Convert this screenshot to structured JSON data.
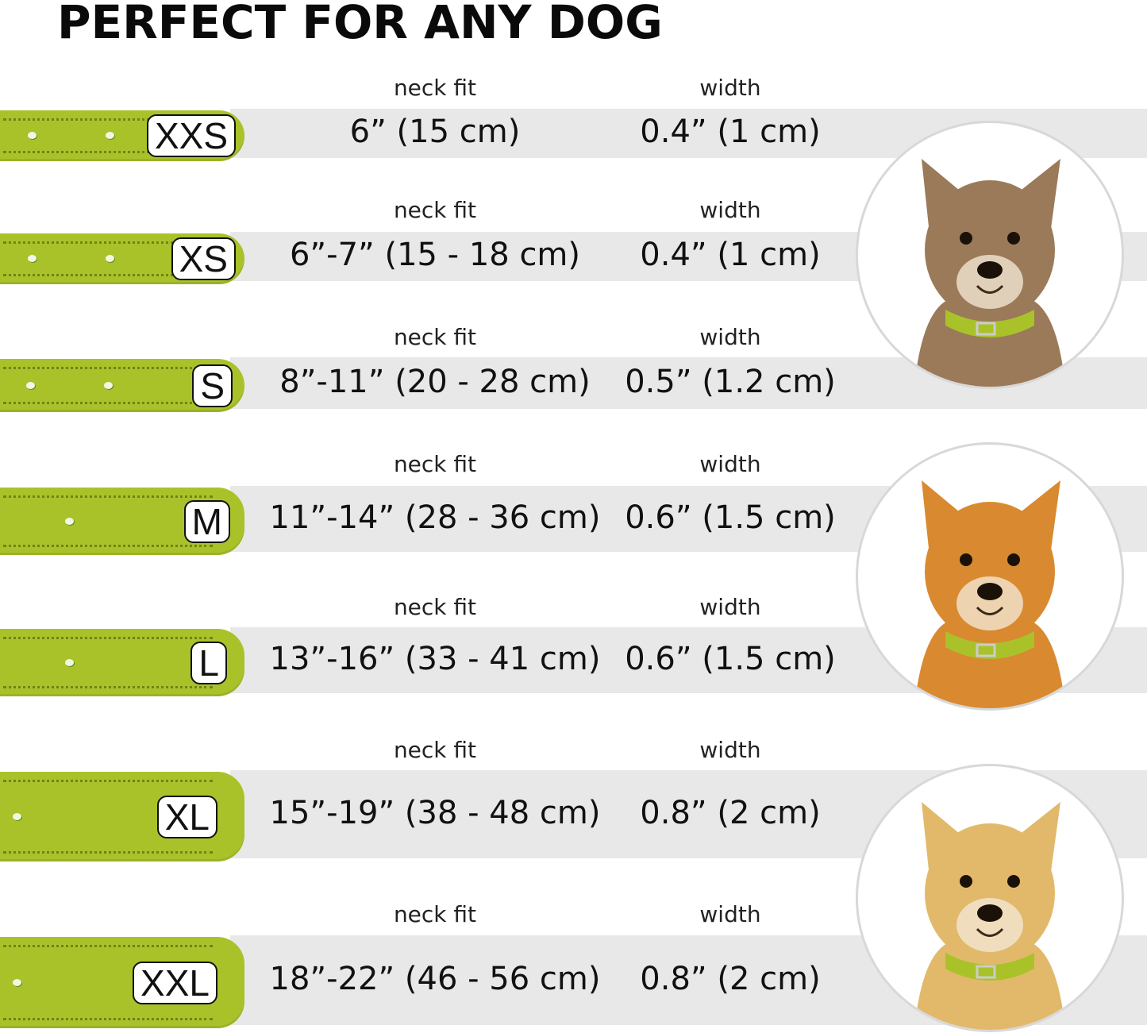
{
  "title": "PERFECT FOR ANY DOG",
  "colors": {
    "collar": "#a9c22a",
    "band": "#e8e8e8"
  },
  "sizes": [
    {
      "size": "XXS",
      "neck_label": "neck fit",
      "width_label": "width",
      "neck_fit": "6” (15 cm)",
      "width": "0.4” (1 cm)"
    },
    {
      "size": "XS",
      "neck_label": "neck fit",
      "width_label": "width",
      "neck_fit": "6”-7” (15 - 18 cm)",
      "width": "0.4” (1 cm)"
    },
    {
      "size": "S",
      "neck_label": "neck fit",
      "width_label": "width",
      "neck_fit": "8”-11” (20 - 28 cm)",
      "width": "0.5” (1.2 cm)"
    },
    {
      "size": "M",
      "neck_label": "neck fit",
      "width_label": "width",
      "neck_fit": "11”-14” (28 - 36 cm)",
      "width": "0.6” (1.5 cm)"
    },
    {
      "size": "L",
      "neck_label": "neck fit",
      "width_label": "width",
      "neck_fit": "13”-16” (33 - 41 cm)",
      "width": "0.6” (1.5 cm)"
    },
    {
      "size": "XL",
      "neck_label": "neck fit",
      "width_label": "width",
      "neck_fit": "15”-19” (38 - 48 cm)",
      "width": "0.8” (2 cm)"
    },
    {
      "size": "XXL",
      "neck_label": "neck fit",
      "width_label": "width",
      "neck_fit": "18”-22” (46 - 56 cm)",
      "width": "0.8” (2 cm)"
    }
  ],
  "dog_images": [
    {
      "name": "terrier-photo",
      "fur": "#9a7a58"
    },
    {
      "name": "corgi-photo",
      "fur": "#d9892f"
    },
    {
      "name": "labrador-photo",
      "fur": "#e2b96a"
    }
  ]
}
